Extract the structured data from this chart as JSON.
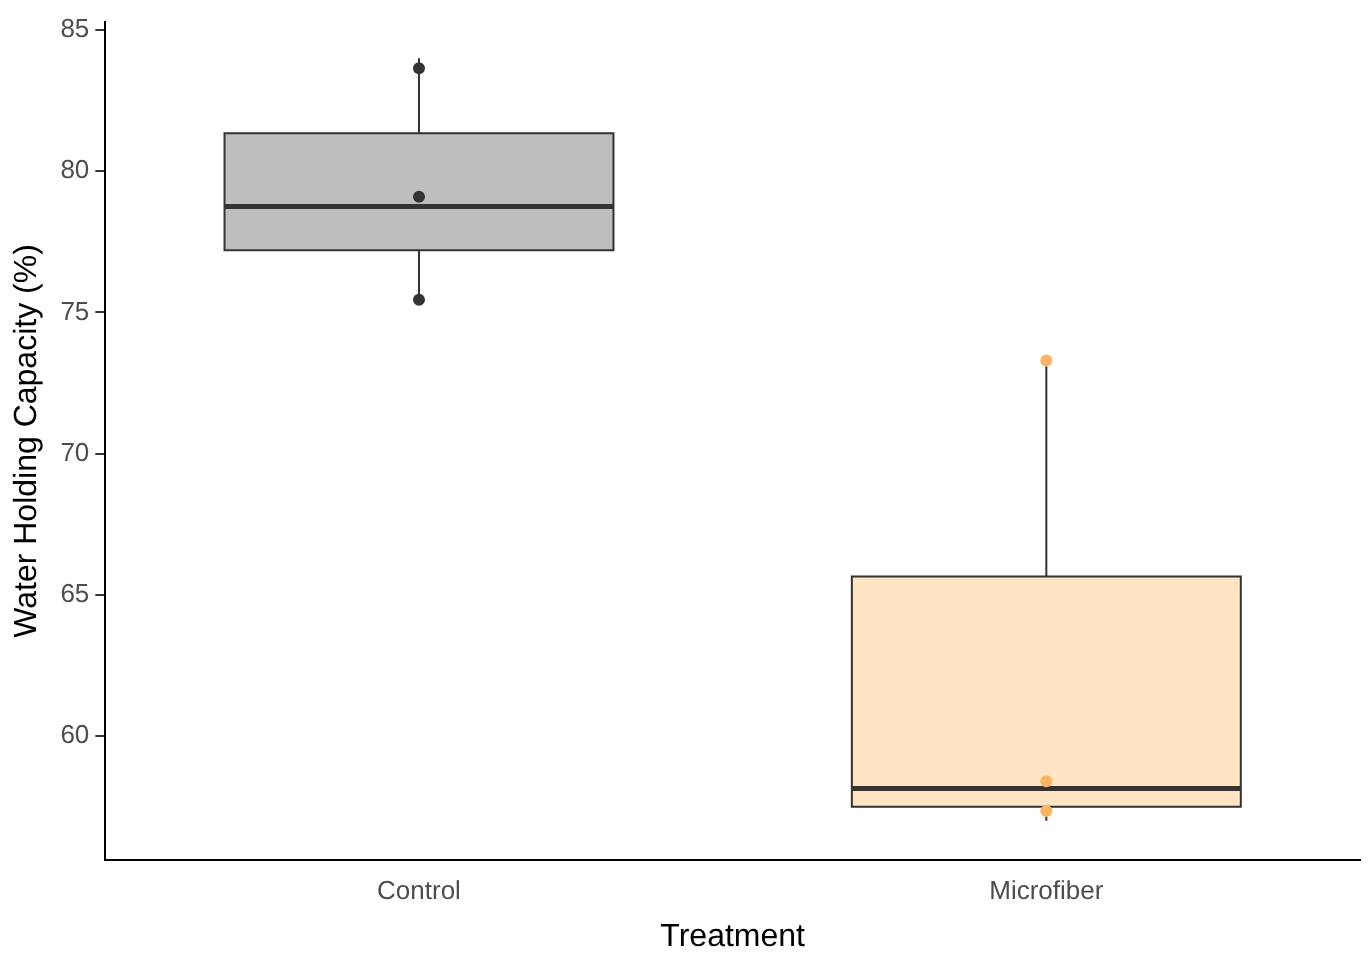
{
  "chart_data": {
    "type": "box",
    "xlabel": "Treatment",
    "ylabel": "Water Holding Capacity (%)",
    "categories": [
      "Control",
      "Microfiber"
    ],
    "colors": [
      "#bebebe",
      "#ffe4c4"
    ],
    "boxes": [
      {
        "low": 75.6,
        "q1": 77.2,
        "median": 78.75,
        "q3": 81.35,
        "high": 84.0
      },
      {
        "low": 57.0,
        "q1": 57.5,
        "median": 58.15,
        "q3": 65.65,
        "high": 73.1
      }
    ],
    "ylim": [
      55.6,
      85.3
    ],
    "yticks": [
      60,
      65,
      70,
      75,
      80,
      85
    ],
    "grid": false,
    "legend": false,
    "marker": "circle",
    "series": [
      {
        "type": "scatter",
        "x": [
          "Control",
          "Control",
          "Control"
        ],
        "values": [
          83.65,
          79.1,
          75.45
        ],
        "color": "#333333"
      },
      {
        "type": "scatter",
        "x": [
          "Microfiber",
          "Microfiber",
          "Microfiber"
        ],
        "values": [
          73.3,
          58.4,
          57.35
        ],
        "color": "#fdb462"
      }
    ]
  }
}
